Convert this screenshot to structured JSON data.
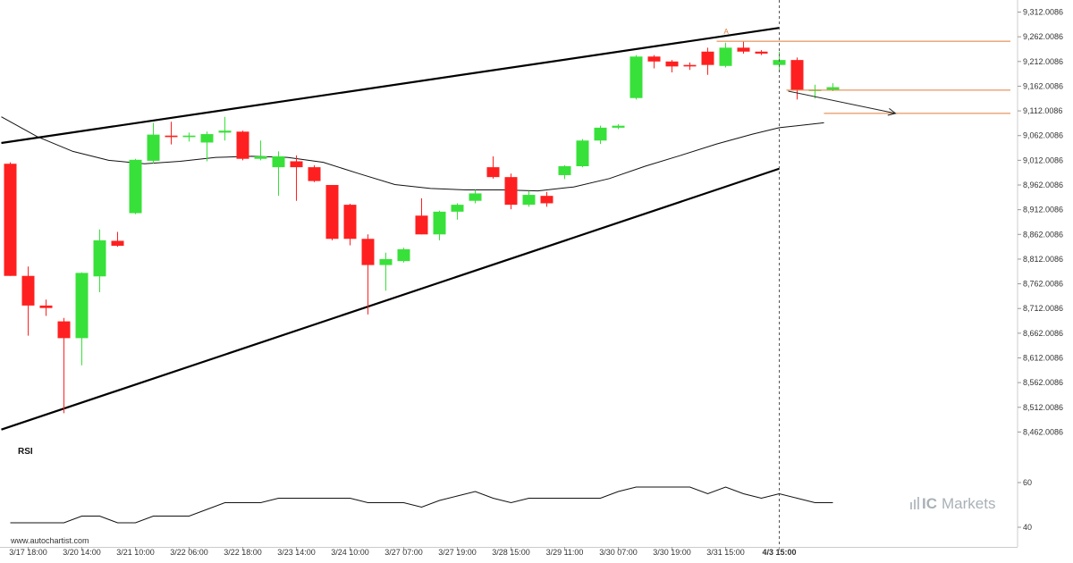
{
  "chart_data": {
    "type": "candlestick",
    "y_ticks": [
      "9,312.0086",
      "9,262.0086",
      "9,212.0086",
      "9,162.0086",
      "9,112.0086",
      "9,062.0086",
      "9,012.0086",
      "8,962.0086",
      "8,912.0086",
      "8,862.0086",
      "8,812.0086",
      "8,762.0086",
      "8,712.0086",
      "8,662.0086",
      "8,612.0086",
      "8,562.0086",
      "8,512.0086",
      "8,462.0086"
    ],
    "ylim": [
      8432,
      9322
    ],
    "x_ticks": [
      {
        "label": "3/17 18:00",
        "index": 1
      },
      {
        "label": "3/20 14:00",
        "index": 4
      },
      {
        "label": "3/21 10:00",
        "index": 7
      },
      {
        "label": "3/22 06:00",
        "index": 10
      },
      {
        "label": "3/22 18:00",
        "index": 13
      },
      {
        "label": "3/23 14:00",
        "index": 16
      },
      {
        "label": "3/24 10:00",
        "index": 19
      },
      {
        "label": "3/27 07:00",
        "index": 22
      },
      {
        "label": "3/27 19:00",
        "index": 25
      },
      {
        "label": "3/28 15:00",
        "index": 28
      },
      {
        "label": "3/29 11:00",
        "index": 31
      },
      {
        "label": "3/30 07:00",
        "index": 34
      },
      {
        "label": "3/30 19:00",
        "index": 37
      },
      {
        "label": "3/31 15:00",
        "index": 40
      },
      {
        "label": "4/3 15:00",
        "index": 43,
        "bold": true
      }
    ],
    "candles": [
      {
        "o": 9005,
        "h": 9008,
        "l": 8778,
        "c": 8778
      },
      {
        "o": 8778,
        "h": 8797,
        "l": 8657,
        "c": 8718
      },
      {
        "o": 8718,
        "h": 8730,
        "l": 8697,
        "c": 8713
      },
      {
        "o": 8686,
        "h": 8693,
        "l": 8500,
        "c": 8652
      },
      {
        "o": 8652,
        "h": 8785,
        "l": 8597,
        "c": 8784
      },
      {
        "o": 8777,
        "h": 8872,
        "l": 8745,
        "c": 8850
      },
      {
        "o": 8849,
        "h": 8867,
        "l": 8837,
        "c": 8839
      },
      {
        "o": 8905,
        "h": 9015,
        "l": 8903,
        "c": 9013
      },
      {
        "o": 9011,
        "h": 9088,
        "l": 9005,
        "c": 9064
      },
      {
        "o": 9062,
        "h": 9090,
        "l": 9044,
        "c": 9059
      },
      {
        "o": 9059,
        "h": 9068,
        "l": 9050,
        "c": 9062
      },
      {
        "o": 9048,
        "h": 9070,
        "l": 9010,
        "c": 9065
      },
      {
        "o": 9068,
        "h": 9100,
        "l": 9052,
        "c": 9072
      },
      {
        "o": 9070,
        "h": 9072,
        "l": 9012,
        "c": 9015
      },
      {
        "o": 9015,
        "h": 9052,
        "l": 9012,
        "c": 9020
      },
      {
        "o": 8998,
        "h": 9030,
        "l": 8940,
        "c": 9020
      },
      {
        "o": 9010,
        "h": 9022,
        "l": 8930,
        "c": 8998
      },
      {
        "o": 8998,
        "h": 9002,
        "l": 8968,
        "c": 8970
      },
      {
        "o": 8962,
        "h": 8962,
        "l": 8850,
        "c": 8853
      },
      {
        "o": 8922,
        "h": 8924,
        "l": 8840,
        "c": 8853
      },
      {
        "o": 8853,
        "h": 8862,
        "l": 8700,
        "c": 8800
      },
      {
        "o": 8800,
        "h": 8825,
        "l": 8748,
        "c": 8812
      },
      {
        "o": 8808,
        "h": 8835,
        "l": 8805,
        "c": 8832
      },
      {
        "o": 8900,
        "h": 8935,
        "l": 8862,
        "c": 8862
      },
      {
        "o": 8862,
        "h": 8910,
        "l": 8850,
        "c": 8908
      },
      {
        "o": 8908,
        "h": 8925,
        "l": 8892,
        "c": 8922
      },
      {
        "o": 8930,
        "h": 8952,
        "l": 8925,
        "c": 8945
      },
      {
        "o": 8998,
        "h": 9020,
        "l": 8975,
        "c": 8978
      },
      {
        "o": 8978,
        "h": 8985,
        "l": 8913,
        "c": 8922
      },
      {
        "o": 8922,
        "h": 8950,
        "l": 8918,
        "c": 8942
      },
      {
        "o": 8940,
        "h": 8948,
        "l": 8918,
        "c": 8925
      },
      {
        "o": 8982,
        "h": 9002,
        "l": 8974,
        "c": 9000
      },
      {
        "o": 9000,
        "h": 9055,
        "l": 8998,
        "c": 9052
      },
      {
        "o": 9052,
        "h": 9082,
        "l": 9045,
        "c": 9078
      },
      {
        "o": 9078,
        "h": 9085,
        "l": 9075,
        "c": 9082
      },
      {
        "o": 9138,
        "h": 9225,
        "l": 9135,
        "c": 9222
      },
      {
        "o": 9222,
        "h": 9225,
        "l": 9198,
        "c": 9212
      },
      {
        "o": 9212,
        "h": 9215,
        "l": 9190,
        "c": 9202
      },
      {
        "o": 9205,
        "h": 9210,
        "l": 9195,
        "c": 9202
      },
      {
        "o": 9232,
        "h": 9240,
        "l": 9185,
        "c": 9205
      },
      {
        "o": 9203,
        "h": 9250,
        "l": 9200,
        "c": 9240
      },
      {
        "o": 9240,
        "h": 9252,
        "l": 9228,
        "c": 9232
      },
      {
        "o": 9232,
        "h": 9235,
        "l": 9225,
        "c": 9228
      },
      {
        "o": 9205,
        "h": 9232,
        "l": 9192,
        "c": 9215
      },
      {
        "o": 9215,
        "h": 9220,
        "l": 9135,
        "c": 9155
      },
      {
        "o": 9155,
        "h": 9165,
        "l": 9137,
        "c": 9155
      },
      {
        "o": 9155,
        "h": 9168,
        "l": 9152,
        "c": 9160
      }
    ],
    "moving_average": [
      {
        "i": -0.5,
        "v": 9100
      },
      {
        "i": 1.5,
        "v": 9060
      },
      {
        "i": 3.5,
        "v": 9030
      },
      {
        "i": 5.5,
        "v": 9012
      },
      {
        "i": 7.5,
        "v": 9005
      },
      {
        "i": 9.5,
        "v": 9010
      },
      {
        "i": 11.5,
        "v": 9018
      },
      {
        "i": 13.5,
        "v": 9020
      },
      {
        "i": 15.5,
        "v": 9018
      },
      {
        "i": 17.5,
        "v": 9008
      },
      {
        "i": 19.5,
        "v": 8985
      },
      {
        "i": 21.5,
        "v": 8963
      },
      {
        "i": 23.5,
        "v": 8955
      },
      {
        "i": 25.5,
        "v": 8952
      },
      {
        "i": 27.5,
        "v": 8952
      },
      {
        "i": 29.5,
        "v": 8950
      },
      {
        "i": 31.5,
        "v": 8958
      },
      {
        "i": 33.5,
        "v": 8975
      },
      {
        "i": 35.5,
        "v": 9000
      },
      {
        "i": 37.5,
        "v": 9022
      },
      {
        "i": 39.5,
        "v": 9045
      },
      {
        "i": 41.5,
        "v": 9065
      },
      {
        "i": 43,
        "v": 9078
      },
      {
        "i": 45.5,
        "v": 9088
      }
    ],
    "pattern": {
      "upper_line": [
        {
          "i": -0.5,
          "v": 9047
        },
        {
          "i": 43,
          "v": 9280
        }
      ],
      "lower_line": [
        {
          "i": -0.5,
          "v": 8467
        },
        {
          "i": 43,
          "v": 8995
        }
      ],
      "forecast_line": [
        {
          "i": 43.5,
          "v": 9152
        },
        {
          "i": 49.5,
          "v": 9107
        }
      ],
      "resistance_level": 9253,
      "current_level": 9154,
      "target_level": 9107,
      "target_start_index": 45.5,
      "marker_label": "A",
      "marker_index": 40,
      "marker_value": 9268,
      "divider_index": 43
    },
    "rsi": {
      "title": "RSI",
      "ticks": [
        "60",
        "40"
      ],
      "ylim": [
        36,
        68
      ],
      "values": [
        42,
        42,
        42,
        42,
        45,
        45,
        42,
        42,
        45,
        45,
        45,
        48,
        51,
        51,
        51,
        53,
        53,
        53,
        53,
        53,
        51,
        51,
        51,
        49,
        52,
        54,
        56,
        53,
        51,
        53,
        53,
        53,
        53,
        53,
        56,
        58,
        58,
        58,
        58,
        55,
        58,
        55,
        53,
        55,
        53,
        51,
        51
      ]
    },
    "colors": {
      "up": "#38e13a",
      "down": "#fe2020",
      "level": "#e07b39",
      "pattern_line": "#000000"
    }
  },
  "footer": {
    "watermark_url": "www.autochartist.com",
    "logo_ic": "IC",
    "logo_markets": "Markets"
  }
}
